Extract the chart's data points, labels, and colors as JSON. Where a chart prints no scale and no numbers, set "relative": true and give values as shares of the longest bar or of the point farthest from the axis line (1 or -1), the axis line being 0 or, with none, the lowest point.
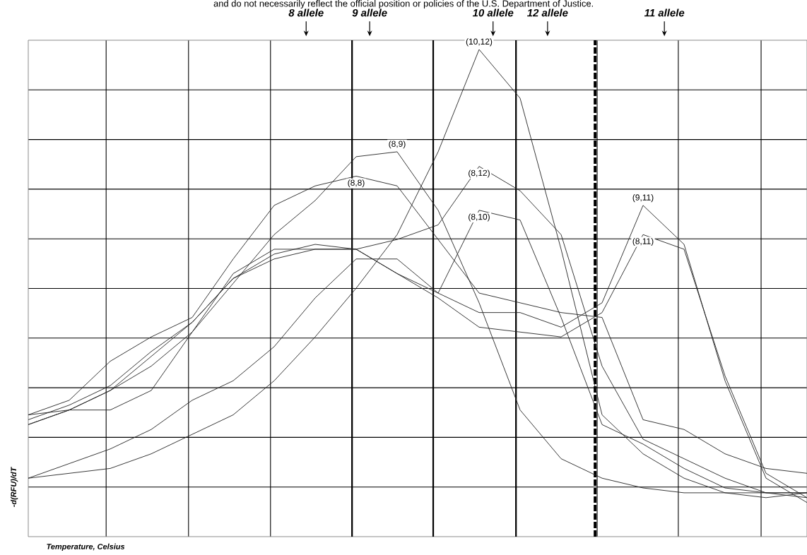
{
  "chart_data": {
    "type": "line",
    "relative": true,
    "grid": true,
    "xlabel": "Temperature, Celsius",
    "ylabel": "-d(RFU)/dT",
    "annotations": [
      "and do not necessarily reflect the official position or policies of the U.S. Department of Justice.",
      "8 allele",
      "9 allele",
      "10 allele",
      "12 allele",
      "11 allele"
    ],
    "categories": [
      null,
      null,
      null,
      null,
      null,
      null,
      null,
      null,
      null,
      null,
      null,
      null,
      null,
      null,
      null,
      null,
      null,
      null,
      null,
      null
    ],
    "series": [
      {
        "name": "(8,8)",
        "color": "#222222",
        "values": [
          0.25,
          0.28,
          0.36,
          0.41,
          0.45,
          0.57,
          0.68,
          0.72,
          0.74,
          0.72,
          0.61,
          0.5,
          0.48,
          0.46,
          0.45,
          0.24,
          0.22,
          0.17,
          0.14,
          0.13
        ]
      },
      {
        "name": "(8,9)",
        "color": "#222222",
        "values": [
          0.23,
          0.26,
          0.3,
          0.35,
          0.42,
          0.52,
          0.62,
          0.69,
          0.78,
          0.79,
          0.67,
          0.48,
          0.26,
          0.16,
          0.12,
          0.1,
          0.09,
          0.09,
          0.09,
          0.09
        ]
      },
      {
        "name": "(10,12)",
        "color": "#222222",
        "values": [
          0.12,
          0.13,
          0.14,
          0.17,
          0.21,
          0.25,
          0.32,
          0.41,
          0.51,
          0.62,
          0.79,
          1.0,
          0.9,
          0.59,
          0.25,
          0.17,
          0.12,
          0.09,
          0.08,
          0.09
        ]
      },
      {
        "name": "(8,12)",
        "color": "#222222",
        "values": [
          0.24,
          0.27,
          0.31,
          0.38,
          0.44,
          0.53,
          0.57,
          0.59,
          0.59,
          0.61,
          0.64,
          0.76,
          0.71,
          0.62,
          0.35,
          0.2,
          0.16,
          0.12,
          0.09,
          0.08
        ]
      },
      {
        "name": "(8,10)",
        "color": "#222222",
        "values": [
          0.23,
          0.26,
          0.3,
          0.37,
          0.44,
          0.53,
          0.58,
          0.6,
          0.59,
          0.54,
          0.5,
          0.67,
          0.65,
          0.45,
          0.23,
          0.19,
          0.14,
          0.1,
          0.09,
          0.09
        ]
      },
      {
        "name": "(9,11)",
        "color": "#222222",
        "values": [
          0.12,
          0.15,
          0.18,
          0.22,
          0.28,
          0.32,
          0.39,
          0.49,
          0.57,
          0.57,
          0.5,
          0.46,
          0.46,
          0.43,
          0.48,
          0.68,
          0.6,
          0.32,
          0.12,
          0.07
        ]
      },
      {
        "name": "(8,11)",
        "color": "#222222",
        "values": [
          0.25,
          0.26,
          0.26,
          0.3,
          0.42,
          0.54,
          0.59,
          0.59,
          0.59,
          0.54,
          0.49,
          0.43,
          0.42,
          0.41,
          0.46,
          0.62,
          0.59,
          0.33,
          0.13,
          0.08
        ]
      }
    ]
  }
}
